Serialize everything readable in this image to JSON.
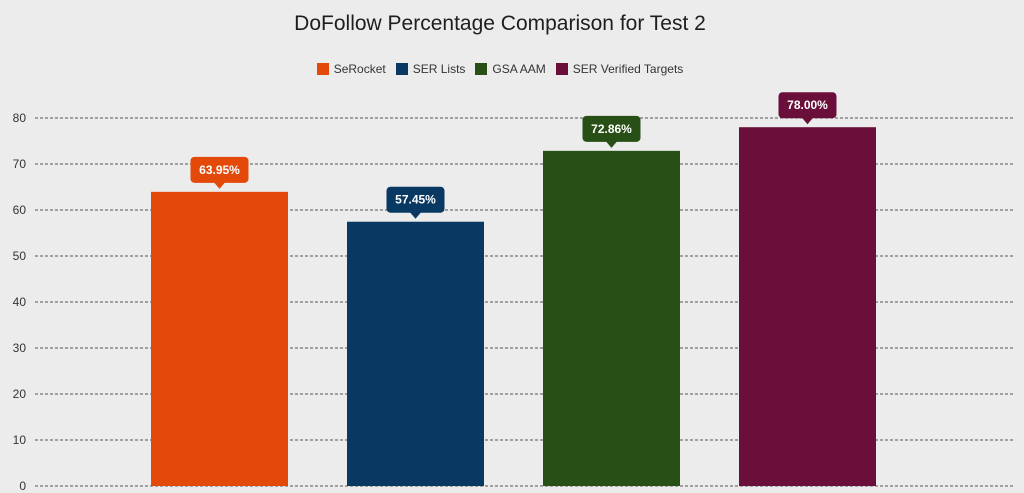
{
  "chart_data": {
    "type": "bar",
    "title": "DoFollow Percentage Comparison for Test 2",
    "xlabel": "",
    "ylabel": "",
    "ylim": [
      0,
      80
    ],
    "yticks": [
      0,
      10,
      20,
      30,
      40,
      50,
      60,
      70,
      80
    ],
    "grid": true,
    "legend_position": "top-center",
    "series": [
      {
        "name": "SeRocket",
        "value": 63.95,
        "label": "63.95%",
        "color": "#e34a0a"
      },
      {
        "name": "SER Lists",
        "value": 57.45,
        "label": "57.45%",
        "color": "#093863"
      },
      {
        "name": "GSA AAM",
        "value": 72.86,
        "label": "72.86%",
        "color": "#285016"
      },
      {
        "name": "SER Verified Targets",
        "value": 78.0,
        "label": "78.00%",
        "color": "#6a0f3a"
      }
    ]
  }
}
